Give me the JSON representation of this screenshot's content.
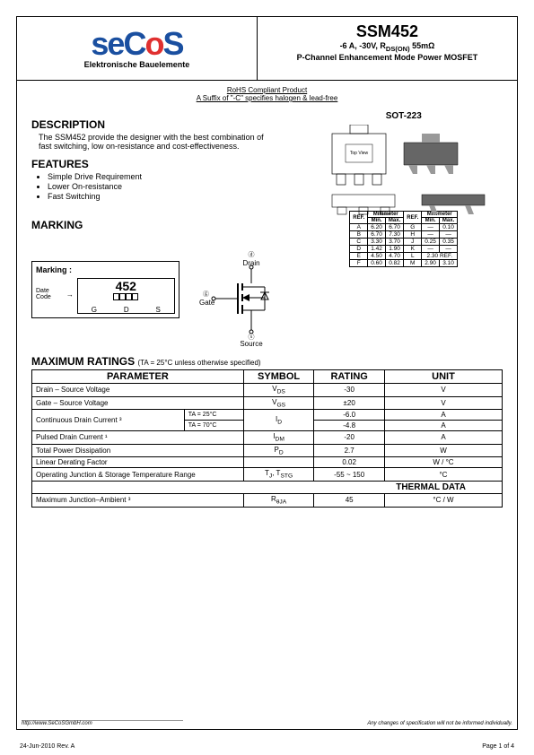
{
  "header": {
    "logo_main": "seCoS",
    "logo_sub": "Elektronische Bauelemente",
    "part_number": "SSM452",
    "spec_line": "-6 A, -30V, R",
    "spec_rdson": "DS(ON)",
    "spec_ohm": " 55mΩ",
    "product_type": "P-Channel Enhancement Mode Power MOSFET"
  },
  "rohs": {
    "line1": "RoHS Compliant Product",
    "line2": "A Suffix of \"-C\" specifies halogen & lead-free"
  },
  "description": {
    "title": "DESCRIPTION",
    "text1": "The SSM452 provide the designer with the best combination of",
    "text2": "fast switching, low on-resistance and cost-effectiveness."
  },
  "features": {
    "title": "FEATURES",
    "items": [
      "Simple Drive Requirement",
      "Lower On-resistance",
      "Fast Switching"
    ]
  },
  "package": {
    "label": "SOT-223"
  },
  "marking": {
    "title": "MARKING",
    "label": "Marking :",
    "date_label": "Date Code",
    "part": "452",
    "pins": [
      "G",
      "D",
      "S"
    ]
  },
  "symbol": {
    "drain": "Drain",
    "gate": "Gate",
    "source": "Source",
    "d_circle": "ⓓ",
    "g_circle": "ⓖ",
    "s_circle": "ⓢ"
  },
  "dimensions": {
    "header_ref": "REF.",
    "header_mm": "Millimeter",
    "header_min": "Min.",
    "header_max": "Max.",
    "rows": [
      [
        "A",
        "6.20",
        "6.70",
        "G",
        "—",
        "0.10"
      ],
      [
        "B",
        "6.70",
        "7.30",
        "H",
        "—",
        "—"
      ],
      [
        "C",
        "3.30",
        "3.70",
        "J",
        "0.25",
        "0.35"
      ],
      [
        "D",
        "1.42",
        "1.90",
        "K",
        "—",
        "—"
      ],
      [
        "E",
        "4.50",
        "4.70",
        "L",
        "2.30 REF.",
        " "
      ],
      [
        "F",
        "0.60",
        "0.82",
        "M",
        "2.90",
        "3.10"
      ]
    ]
  },
  "ratings": {
    "title": "MAXIMUM RATINGS",
    "condition": "(TA = 25°C unless otherwise specified)",
    "columns": [
      "PARAMETER",
      "SYMBOL",
      "RATING",
      "UNIT"
    ],
    "thermal_title": "THERMAL DATA",
    "rows": {
      "vds": {
        "param": "Drain – Source Voltage",
        "symbol": "VDS",
        "rating": "-30",
        "unit": "V"
      },
      "vgs": {
        "param": "Gate – Source Voltage",
        "symbol": "VGS",
        "rating": "±20",
        "unit": "V"
      },
      "id_label": "Continuous Drain Current ³",
      "id25": {
        "cond": "TA = 25°C",
        "symbol": "ID",
        "rating": "-6.0",
        "unit": "A"
      },
      "id70": {
        "cond": "TA = 70°C",
        "rating": "-4.8",
        "unit": "A"
      },
      "idm": {
        "param": "Pulsed Drain Current ¹",
        "symbol": "IDM",
        "rating": "-20",
        "unit": "A"
      },
      "pd": {
        "param": "Total Power Dissipation",
        "symbol": "PD",
        "rating": "2.7",
        "unit": "W"
      },
      "derating": {
        "param": "Linear Derating Factor",
        "symbol": "",
        "rating": "0.02",
        "unit": "W / °C"
      },
      "tj": {
        "param": "Operating Junction & Storage Temperature Range",
        "symbol": "TJ, TSTG",
        "rating": "-55 ~ 150",
        "unit": "°C"
      },
      "rthja": {
        "param": "Maximum Junction–Ambient ³",
        "symbol": "RθJA",
        "rating": "45",
        "unit": "°C / W"
      }
    }
  },
  "footer": {
    "url": "http://www.SeCoSGmbH.com",
    "note": "Any changes of specification will not be informed individually.",
    "date": "24-Jun-2010 Rev. A",
    "page": "Page  1 of 4"
  }
}
